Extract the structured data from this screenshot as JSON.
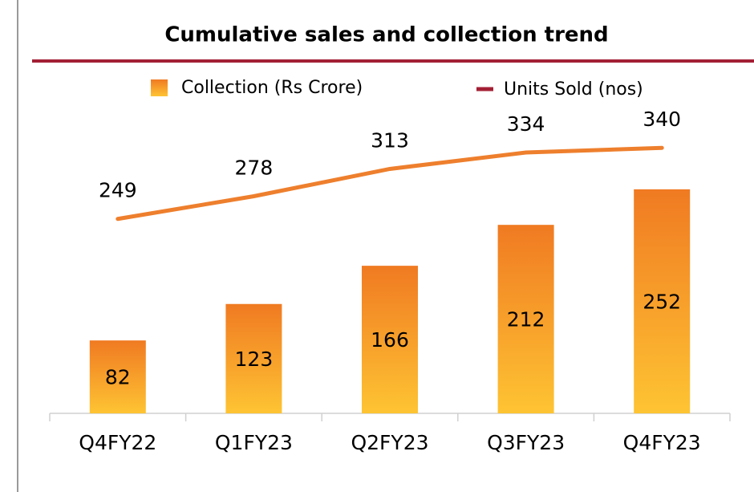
{
  "chart_data": {
    "type": "bar_line",
    "title": "Cumulative sales and collection trend",
    "categories": [
      "Q4FY22",
      "Q1FY23",
      "Q2FY23",
      "Q3FY23",
      "Q4FY23"
    ],
    "series": [
      {
        "name": "Collection (Rs Crore)",
        "type": "bar",
        "gradient": [
          "#f07a22",
          "#fec433"
        ],
        "values": [
          82,
          123,
          166,
          212,
          252
        ]
      },
      {
        "name": "Units Sold (nos)",
        "type": "line",
        "axis": "y2",
        "color": "#ee7f2d",
        "legend_color": "#a31f34",
        "values": [
          249,
          278,
          313,
          334,
          340
        ]
      }
    ],
    "ylim": [
      0,
      325
    ],
    "y2lim": [
      0,
      370
    ]
  }
}
